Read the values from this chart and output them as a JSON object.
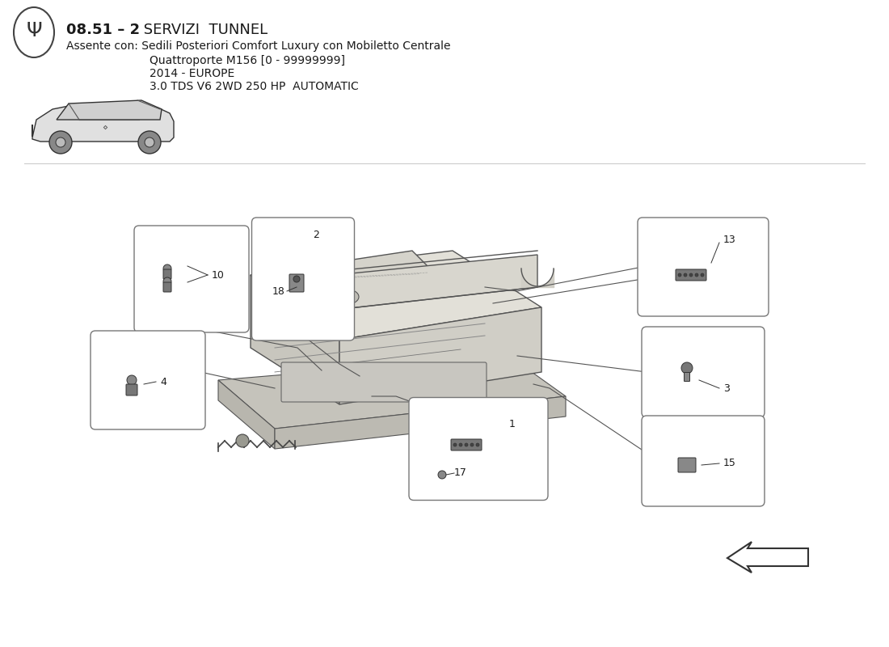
{
  "title_bold": "08.51 - 2",
  "title_normal": " SERVIZI  TUNNEL",
  "subtitle_line1": "Assente con: Sedili Posteriori Comfort Luxury con Mobiletto Centrale",
  "subtitle_line2": "Quattroporte M156 [0 - 99999999]",
  "subtitle_line3": "2014 - EUROPE",
  "subtitle_line4": "3.0 TDS V6 2WD 250 HP  AUTOMATIC",
  "bg_color": "#ffffff",
  "text_color": "#1a1a1a",
  "box_facecolor": "#ffffff",
  "box_edgecolor": "#777777",
  "line_color": "#555555",
  "part_color": "#333333",
  "console_face": "#d8d8d0",
  "console_top": "#e8e8e0",
  "console_side": "#c8c8c0",
  "console_edge": "#555555"
}
